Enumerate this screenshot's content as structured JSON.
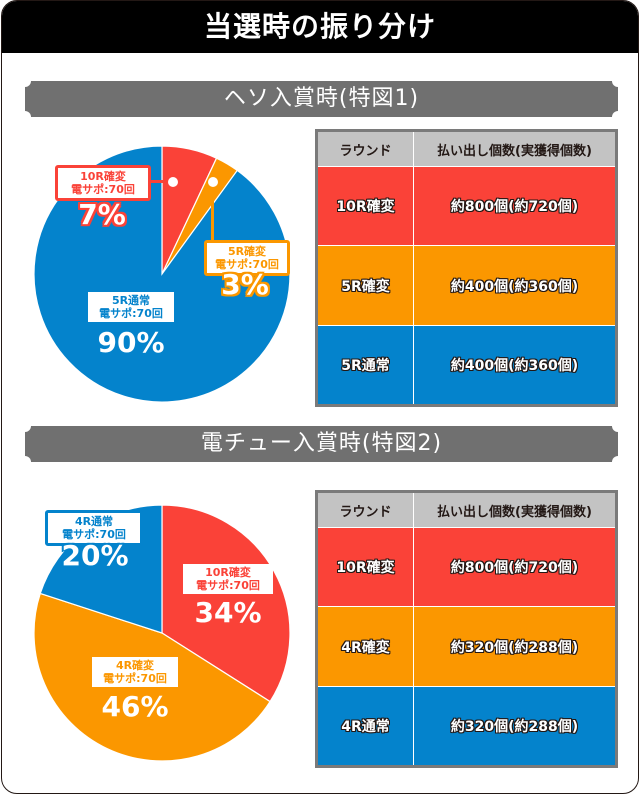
{
  "title": "当選時の振り分け",
  "colors": {
    "red": "#fa4238",
    "orange": "#fb9700",
    "blue": "#0483cc",
    "banner_gray": "#707070",
    "header_gray": "#c3c3c3"
  },
  "sections": [
    {
      "banner": "ヘソ入賞時(特図1)",
      "table": {
        "headers": [
          "ラウンド",
          "払い出し個数(実獲得個数)"
        ],
        "rows": [
          {
            "round": "10R確変",
            "payout": "約800個(約720個)",
            "color": "#fa4238"
          },
          {
            "round": "5R確変",
            "payout": "約400個(約360個)",
            "color": "#fb9700"
          },
          {
            "round": "5R通常",
            "payout": "約400個(約360個)",
            "color": "#0483cc"
          }
        ]
      },
      "pie": {
        "slices": [
          {
            "line1": "10R確変",
            "line2": "電サポ:70回",
            "pct": "7%"
          },
          {
            "line1": "5R確変",
            "line2": "電サポ:70回",
            "pct": "3%"
          },
          {
            "line1": "5R通常",
            "line2": "電サポ:70回",
            "pct": "90%"
          }
        ]
      }
    },
    {
      "banner": "電チュー入賞時(特図2)",
      "table": {
        "headers": [
          "ラウンド",
          "払い出し個数(実獲得個数)"
        ],
        "rows": [
          {
            "round": "10R確変",
            "payout": "約800個(約720個)",
            "color": "#fa4238"
          },
          {
            "round": "4R確変",
            "payout": "約320個(約288個)",
            "color": "#fb9700"
          },
          {
            "round": "4R通常",
            "payout": "約320個(約288個)",
            "color": "#0483cc"
          }
        ]
      },
      "pie": {
        "slices": [
          {
            "line1": "10R確変",
            "line2": "電サポ:70回",
            "pct": "34%"
          },
          {
            "line1": "4R確変",
            "line2": "電サポ:70回",
            "pct": "46%"
          },
          {
            "line1": "4R通常",
            "line2": "電サポ:70回",
            "pct": "20%"
          }
        ]
      }
    }
  ],
  "chart_data": [
    {
      "type": "pie",
      "title": "ヘソ入賞時(特図1)",
      "categories": [
        "10R確変 電サポ:70回",
        "5R確変 電サポ:70回",
        "5R通常 電サポ:70回"
      ],
      "values": [
        7,
        3,
        90
      ],
      "colors": [
        "#fa4238",
        "#fb9700",
        "#0483cc"
      ],
      "start_angle": "12 o'clock, clockwise"
    },
    {
      "type": "pie",
      "title": "電チュー入賞時(特図2)",
      "categories": [
        "10R確変 電サポ:70回",
        "4R確変 電サポ:70回",
        "4R通常 電サポ:70回"
      ],
      "values": [
        34,
        46,
        20
      ],
      "colors": [
        "#fa4238",
        "#fb9700",
        "#0483cc"
      ],
      "start_angle": "12 o'clock, clockwise"
    },
    {
      "type": "table",
      "title": "ヘソ入賞時(特図1) ラウンド別払い出し",
      "columns": [
        "ラウンド",
        "払い出し個数(実獲得個数)"
      ],
      "rows": [
        [
          "10R確変",
          "約800個(約720個)"
        ],
        [
          "5R確変",
          "約400個(約360個)"
        ],
        [
          "5R通常",
          "約400個(約360個)"
        ]
      ]
    },
    {
      "type": "table",
      "title": "電チュー入賞時(特図2) ラウンド別払い出し",
      "columns": [
        "ラウンド",
        "払い出し個数(実獲得個数)"
      ],
      "rows": [
        [
          "10R確変",
          "約800個(約720個)"
        ],
        [
          "4R確変",
          "約320個(約288個)"
        ],
        [
          "4R通常",
          "約320個(約288個)"
        ]
      ]
    }
  ]
}
